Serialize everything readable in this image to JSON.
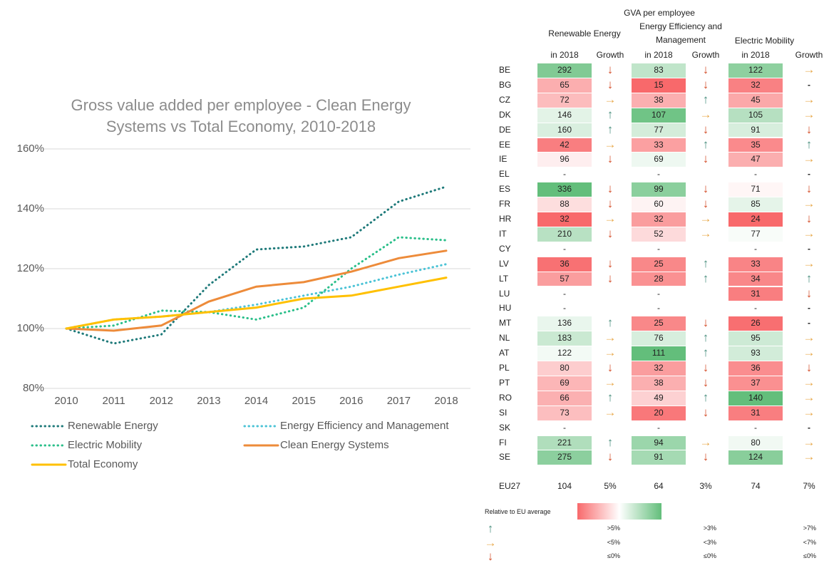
{
  "chart_data": {
    "type": "line",
    "title": "Gross value added per employee - Clean Energy Systems vs Total Economy, 2010-2018",
    "categories": [
      "2010",
      "2011",
      "2012",
      "2013",
      "2014",
      "2015",
      "2016",
      "2017",
      "2018"
    ],
    "ylim": [
      80,
      160
    ],
    "yticks": [
      {
        "value": 80,
        "label": "80%"
      },
      {
        "value": 100,
        "label": "100%"
      },
      {
        "value": 120,
        "label": "120%"
      },
      {
        "value": 140,
        "label": "140%"
      },
      {
        "value": 160,
        "label": "160%"
      }
    ],
    "grid": true,
    "series": [
      {
        "name": "Renewable Energy",
        "color": "#1f7a7a",
        "style": "dotted",
        "values": [
          100,
          95,
          98,
          114.5,
          126.4,
          127.4,
          130.5,
          142.4,
          147.4
        ]
      },
      {
        "name": "Energy Efficiency and Management",
        "color": "#4bc3d6",
        "style": "dotted",
        "values": [
          100,
          103,
          104,
          105.5,
          108,
          111,
          114,
          118,
          121.5
        ]
      },
      {
        "name": "Electric Mobility",
        "color": "#2bbf8a",
        "style": "dotted",
        "values": [
          100,
          101,
          106,
          105.5,
          103,
          107,
          120,
          130.5,
          129.5
        ]
      },
      {
        "name": "Clean Energy Systems",
        "color": "#ed8b3a",
        "style": "solid",
        "values": [
          100,
          99.3,
          101,
          109,
          114,
          115.5,
          119,
          123.5,
          126
        ]
      },
      {
        "name": "Total Economy",
        "color": "#ffc000",
        "style": "solid",
        "values": [
          100,
          103,
          104,
          105.5,
          107,
          110,
          111,
          114,
          117
        ]
      }
    ]
  },
  "table": {
    "title": "GVA per employee",
    "groups": [
      "Renewable Energy",
      "Energy Efficiency and Management",
      "Electric Mobility"
    ],
    "subheaders": [
      "in 2018",
      "Growth",
      "in 2018",
      "Growth",
      "in 2018",
      "Growth"
    ],
    "rows": [
      [
        "BE",
        292,
        "↓",
        83,
        "↓",
        122,
        "→"
      ],
      [
        "BG",
        65,
        "↓",
        15,
        "↓",
        32,
        "-"
      ],
      [
        "CZ",
        72,
        "→",
        38,
        "↑",
        45,
        "→"
      ],
      [
        "DK",
        146,
        "↑",
        107,
        "→",
        105,
        "→"
      ],
      [
        "DE",
        160,
        "↑",
        77,
        "↓",
        91,
        "↓"
      ],
      [
        "EE",
        42,
        "→",
        33,
        "↑",
        35,
        "↑"
      ],
      [
        "IE",
        96,
        "↓",
        69,
        "↓",
        47,
        "→"
      ],
      [
        "EL",
        "-",
        null,
        "-",
        null,
        "-",
        "-"
      ],
      [
        "ES",
        336,
        "↓",
        99,
        "↓",
        71,
        "↓"
      ],
      [
        "FR",
        88,
        "↓",
        60,
        "↓",
        85,
        "→"
      ],
      [
        "HR",
        32,
        "→",
        32,
        "→",
        24,
        "↓"
      ],
      [
        "IT",
        210,
        "↓",
        52,
        "→",
        77,
        "→"
      ],
      [
        "CY",
        "-",
        null,
        "-",
        null,
        "-",
        "-"
      ],
      [
        "LV",
        36,
        "↓",
        25,
        "↑",
        33,
        "→"
      ],
      [
        "LT",
        57,
        "↓",
        28,
        "↑",
        34,
        "↑"
      ],
      [
        "LU",
        "-",
        null,
        "-",
        null,
        31,
        "↓"
      ],
      [
        "HU",
        "-",
        null,
        "-",
        null,
        "-",
        "-"
      ],
      [
        "MT",
        136,
        "↑",
        25,
        "↓",
        26,
        "-"
      ],
      [
        "NL",
        183,
        "→",
        76,
        "↑",
        95,
        "→"
      ],
      [
        "AT",
        122,
        "→",
        111,
        "↑",
        93,
        "→"
      ],
      [
        "PL",
        80,
        "↓",
        32,
        "↓",
        36,
        "↓"
      ],
      [
        "PT",
        69,
        "→",
        38,
        "↓",
        37,
        "→"
      ],
      [
        "RO",
        66,
        "↑",
        49,
        "↑",
        140,
        "→"
      ],
      [
        "SI",
        73,
        "→",
        20,
        "↓",
        31,
        "→"
      ],
      [
        "SK",
        "-",
        null,
        "-",
        null,
        "-",
        "-"
      ],
      [
        "FI",
        221,
        "↑",
        94,
        "→",
        80,
        "→"
      ],
      [
        "SE",
        275,
        "↓",
        91,
        "↓",
        124,
        "→"
      ]
    ],
    "eu27": [
      "EU27",
      104,
      "5%",
      64,
      "3%",
      74,
      "7%"
    ],
    "legend": {
      "title": "Relative to EU average",
      "rows": [
        {
          "symbol": "↑",
          "labels": [
            ">5%",
            ">3%",
            ">7%"
          ]
        },
        {
          "symbol": "→",
          "labels": [
            "<5%",
            "<3%",
            "<7%"
          ]
        },
        {
          "symbol": "↓",
          "labels": [
            "≤0%",
            "≤0%",
            "≤0%"
          ]
        }
      ]
    }
  }
}
